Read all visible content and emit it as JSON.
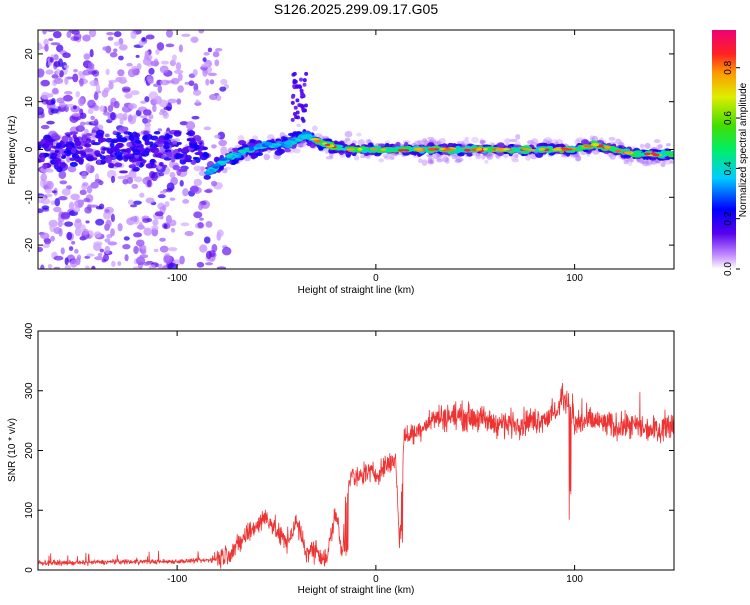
{
  "chart_data": [
    {
      "type": "heatmap",
      "title": "S126.2025.299.09.17.G05",
      "xlabel": "Height of straight line (km)",
      "ylabel": "Frequency (Hz)",
      "xlim": [
        -170,
        150
      ],
      "ylim": [
        -25,
        25
      ],
      "x_ticks": [
        -100,
        0,
        100
      ],
      "y_ticks": [
        -20,
        -10,
        0,
        10,
        20
      ],
      "colorbar": {
        "label": "Normalized spectral amplitude",
        "range": [
          0,
          0.95
        ],
        "ticks": [
          0.0,
          0.2,
          0.4,
          0.6,
          0.8
        ]
      },
      "ridge": {
        "description": "dominant frequency trace",
        "x": [
          -85,
          -75,
          -65,
          -55,
          -45,
          -35,
          -25,
          -15,
          0,
          20,
          40,
          60,
          80,
          100,
          110,
          120,
          130,
          150
        ],
        "y": [
          -5,
          -2,
          0,
          1,
          1,
          3,
          1,
          0,
          0,
          0,
          0,
          0,
          0,
          0,
          1,
          0,
          -1,
          -1
        ]
      }
    },
    {
      "type": "line",
      "xlabel": "Height of straight line (km)",
      "ylabel": "SNR (10 * v/v)",
      "xlim": [
        -170,
        150
      ],
      "ylim": [
        0,
        400
      ],
      "x_ticks": [
        -100,
        0,
        100
      ],
      "y_ticks": [
        0,
        100,
        200,
        300,
        400
      ],
      "series": [
        {
          "name": "SNR",
          "color": "#ee3333",
          "x": [
            -170,
            -150,
            -130,
            -110,
            -90,
            -80,
            -70,
            -65,
            -60,
            -55,
            -50,
            -45,
            -40,
            -35,
            -30,
            -25,
            -20,
            -17,
            -15,
            -12,
            -10,
            -5,
            0,
            5,
            10,
            12,
            14,
            15,
            20,
            25,
            30,
            40,
            50,
            60,
            70,
            80,
            90,
            95,
            100,
            110,
            120,
            130,
            140,
            150
          ],
          "values": [
            12,
            12,
            14,
            14,
            15,
            18,
            38,
            60,
            75,
            90,
            65,
            45,
            80,
            30,
            35,
            15,
            100,
            20,
            125,
            160,
            150,
            165,
            160,
            175,
            185,
            40,
            220,
            225,
            230,
            245,
            255,
            258,
            255,
            245,
            245,
            250,
            260,
            290,
            245,
            250,
            240,
            240,
            235,
            245
          ]
        }
      ]
    }
  ]
}
